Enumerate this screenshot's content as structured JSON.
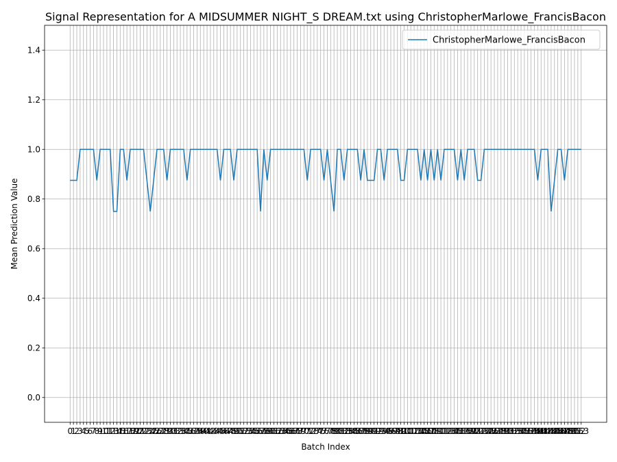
{
  "chart_data": {
    "type": "line",
    "title": "Signal Representation for A MIDSUMMER NIGHT_S DREAM.txt using ChristopherMarlowe_FrancisBacon",
    "xlabel": "Batch Index",
    "ylabel": "Mean Prediction Value",
    "x": [
      0,
      1,
      2,
      3,
      4,
      5,
      6,
      7,
      8,
      9,
      10,
      11,
      12,
      13,
      14,
      15,
      16,
      17,
      18,
      19,
      20,
      21,
      22,
      23,
      24,
      25,
      26,
      27,
      28,
      29,
      30,
      31,
      32,
      33,
      34,
      35,
      36,
      37,
      38,
      39,
      40,
      41,
      42,
      43,
      44,
      45,
      46,
      47,
      48,
      49,
      50,
      51,
      52,
      53,
      54,
      55,
      56,
      57,
      58,
      59,
      60,
      61,
      62,
      63,
      64,
      65,
      66,
      67,
      68,
      69,
      70,
      71,
      72,
      73,
      74,
      75,
      76,
      77,
      78,
      79,
      80,
      81,
      82,
      83,
      84,
      85,
      86,
      87,
      88,
      89,
      90,
      91,
      92,
      93,
      94,
      95,
      96,
      97,
      98,
      99,
      100,
      101,
      102,
      103,
      104,
      105,
      106,
      107,
      108,
      109,
      110,
      111,
      112,
      113,
      114,
      115,
      116,
      117,
      118,
      119,
      120,
      121,
      122,
      123,
      124,
      125,
      126,
      127,
      128,
      129,
      130,
      131,
      132,
      133,
      134,
      135,
      136,
      137,
      138,
      139,
      140,
      141,
      142,
      143,
      144,
      145,
      146,
      147,
      148,
      149,
      150,
      151,
      152,
      153
    ],
    "series": [
      {
        "name": "ChristopherMarlowe_FrancisBacon",
        "color": "#1f77b4",
        "values": [
          0.875,
          0.875,
          0.875,
          1,
          1,
          1,
          1,
          1,
          0.875,
          1,
          1,
          1,
          1,
          0.75,
          0.75,
          1,
          1,
          0.875,
          1,
          1,
          1,
          1,
          1,
          0.875,
          0.75,
          0.875,
          1,
          1,
          1,
          0.875,
          1,
          1,
          1,
          1,
          1,
          0.875,
          1,
          1,
          1,
          1,
          1,
          1,
          1,
          1,
          1,
          0.875,
          1,
          1,
          1,
          0.875,
          1,
          1,
          1,
          1,
          1,
          1,
          1,
          0.75,
          1,
          0.875,
          1,
          1,
          1,
          1,
          1,
          1,
          1,
          1,
          1,
          1,
          1,
          0.875,
          1,
          1,
          1,
          1,
          0.875,
          1,
          0.875,
          0.75,
          1,
          1,
          0.875,
          1,
          1,
          1,
          1,
          0.875,
          1,
          0.875,
          0.875,
          0.875,
          1,
          1,
          0.875,
          1,
          1,
          1,
          1,
          0.875,
          0.875,
          1,
          1,
          1,
          1,
          0.875,
          1,
          0.875,
          1,
          0.875,
          1,
          0.875,
          1,
          1,
          1,
          1,
          0.875,
          1,
          0.875,
          1,
          1,
          1,
          0.875,
          0.875,
          1,
          1,
          1,
          1,
          1,
          1,
          1,
          1,
          1,
          1,
          1,
          1,
          1,
          1,
          1,
          1,
          0.875,
          1,
          1,
          1,
          0.75,
          0.875,
          1,
          1,
          0.875,
          1,
          1,
          1,
          1,
          1
        ]
      }
    ],
    "xlim": [
      -7.65,
      160.65
    ],
    "xticks": [
      0,
      1,
      2,
      3,
      4,
      5,
      6,
      7,
      8,
      9,
      10,
      11,
      12,
      13,
      14,
      15,
      16,
      17,
      18,
      19,
      20,
      21,
      22,
      23,
      24,
      25,
      26,
      27,
      28,
      29,
      30,
      31,
      32,
      33,
      34,
      35,
      36,
      37,
      38,
      39,
      40,
      41,
      42,
      43,
      44,
      45,
      46,
      47,
      48,
      49,
      50,
      51,
      52,
      53,
      54,
      55,
      56,
      57,
      58,
      59,
      60,
      61,
      62,
      63,
      64,
      65,
      66,
      67,
      68,
      69,
      70,
      71,
      72,
      73,
      74,
      75,
      76,
      77,
      78,
      79,
      80,
      81,
      82,
      83,
      84,
      85,
      86,
      87,
      88,
      89,
      90,
      91,
      92,
      93,
      94,
      95,
      96,
      97,
      98,
      99,
      100,
      101,
      102,
      103,
      104,
      105,
      106,
      107,
      108,
      109,
      110,
      111,
      112,
      113,
      114,
      115,
      116,
      117,
      118,
      119,
      120,
      121,
      122,
      123,
      124,
      125,
      126,
      127,
      128,
      129,
      130,
      131,
      132,
      133,
      134,
      135,
      136,
      137,
      138,
      139,
      140,
      141,
      142,
      143,
      144,
      145,
      146,
      147,
      148,
      149,
      150,
      151,
      152,
      153
    ],
    "ylim": [
      -0.1,
      1.5
    ],
    "yticks": [
      {
        "value": 0,
        "label": "0.0"
      },
      {
        "value": 0.2,
        "label": "0.2"
      },
      {
        "value": 0.4,
        "label": "0.4"
      },
      {
        "value": 0.6,
        "label": "0.6"
      },
      {
        "value": 0.8,
        "label": "0.8"
      },
      {
        "value": 1,
        "label": "1.0"
      },
      {
        "value": 1.2,
        "label": "1.2"
      },
      {
        "value": 1.4,
        "label": "1.4"
      }
    ],
    "grid": true,
    "legend": "upper right"
  }
}
